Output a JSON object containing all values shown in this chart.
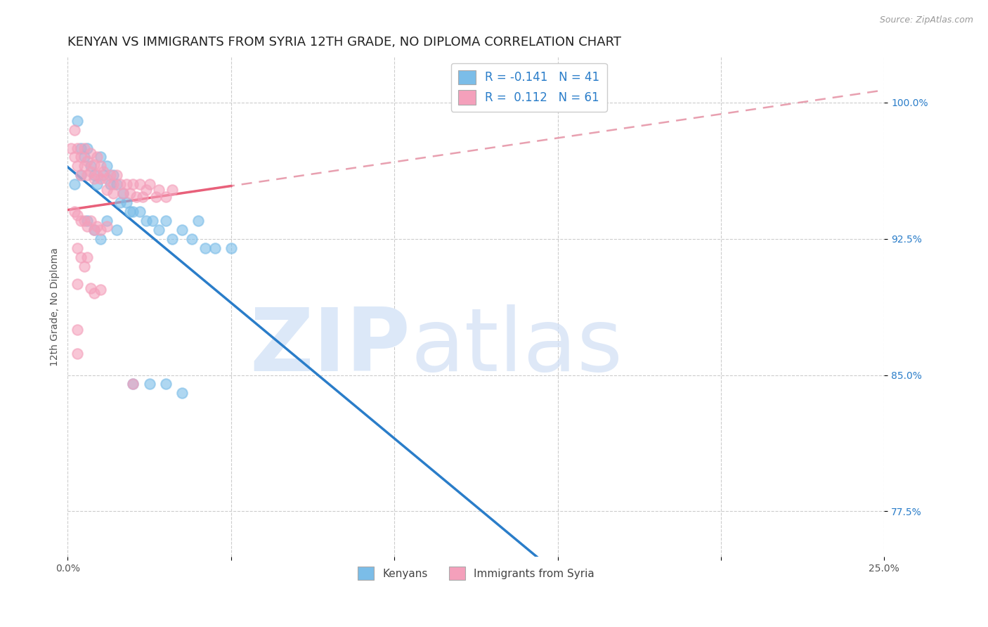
{
  "title": "KENYAN VS IMMIGRANTS FROM SYRIA 12TH GRADE, NO DIPLOMA CORRELATION CHART",
  "source_text": "Source: ZipAtlas.com",
  "ylabel": "12th Grade, No Diploma",
  "xlim": [
    0.0,
    0.25
  ],
  "ylim": [
    0.75,
    1.025
  ],
  "xticks": [
    0.0,
    0.05,
    0.1,
    0.15,
    0.2,
    0.25
  ],
  "xtick_labels": [
    "0.0%",
    "",
    "",
    "",
    "",
    "25.0%"
  ],
  "ytick_labels": [
    "77.5%",
    "85.0%",
    "92.5%",
    "100.0%"
  ],
  "yticks": [
    0.775,
    0.85,
    0.925,
    1.0
  ],
  "legend_top": [
    {
      "label": "R = -0.141   N = 41",
      "color": "#7bbde8"
    },
    {
      "label": "R =  0.112   N = 61",
      "color": "#f4a0bb"
    }
  ],
  "kenyans_x": [
    0.003,
    0.004,
    0.005,
    0.006,
    0.007,
    0.008,
    0.009,
    0.01,
    0.011,
    0.012,
    0.013,
    0.014,
    0.015,
    0.016,
    0.017,
    0.018,
    0.019,
    0.02,
    0.022,
    0.024,
    0.026,
    0.028,
    0.03,
    0.032,
    0.035,
    0.038,
    0.04,
    0.042,
    0.045,
    0.05,
    0.002,
    0.004,
    0.006,
    0.008,
    0.01,
    0.012,
    0.015,
    0.02,
    0.025,
    0.03,
    0.035
  ],
  "kenyans_y": [
    0.99,
    0.975,
    0.97,
    0.975,
    0.965,
    0.96,
    0.955,
    0.97,
    0.96,
    0.965,
    0.955,
    0.96,
    0.955,
    0.945,
    0.95,
    0.945,
    0.94,
    0.94,
    0.94,
    0.935,
    0.935,
    0.93,
    0.935,
    0.925,
    0.93,
    0.925,
    0.935,
    0.92,
    0.92,
    0.92,
    0.955,
    0.96,
    0.935,
    0.93,
    0.925,
    0.935,
    0.93,
    0.845,
    0.845,
    0.845,
    0.84
  ],
  "syria_x": [
    0.001,
    0.002,
    0.002,
    0.003,
    0.003,
    0.004,
    0.004,
    0.005,
    0.005,
    0.006,
    0.006,
    0.007,
    0.007,
    0.008,
    0.008,
    0.009,
    0.009,
    0.01,
    0.01,
    0.011,
    0.012,
    0.012,
    0.013,
    0.014,
    0.014,
    0.015,
    0.016,
    0.017,
    0.018,
    0.019,
    0.02,
    0.021,
    0.022,
    0.023,
    0.024,
    0.025,
    0.027,
    0.028,
    0.03,
    0.032,
    0.002,
    0.003,
    0.004,
    0.005,
    0.006,
    0.007,
    0.008,
    0.009,
    0.01,
    0.012,
    0.003,
    0.004,
    0.005,
    0.006,
    0.003,
    0.007,
    0.008,
    0.01,
    0.003,
    0.003,
    0.02
  ],
  "syria_y": [
    0.975,
    0.985,
    0.97,
    0.975,
    0.965,
    0.97,
    0.96,
    0.975,
    0.965,
    0.968,
    0.96,
    0.972,
    0.962,
    0.966,
    0.958,
    0.97,
    0.96,
    0.965,
    0.958,
    0.962,
    0.958,
    0.952,
    0.96,
    0.955,
    0.95,
    0.96,
    0.955,
    0.95,
    0.955,
    0.95,
    0.955,
    0.948,
    0.955,
    0.948,
    0.952,
    0.955,
    0.948,
    0.952,
    0.948,
    0.952,
    0.94,
    0.938,
    0.935,
    0.935,
    0.932,
    0.935,
    0.93,
    0.932,
    0.93,
    0.932,
    0.92,
    0.915,
    0.91,
    0.915,
    0.9,
    0.898,
    0.895,
    0.897,
    0.875,
    0.862,
    0.845
  ],
  "kenyan_color": "#7bbde8",
  "syria_color": "#f4a0bb",
  "kenyan_line_color": "#2a7dc9",
  "syria_line_solid_color": "#e8607a",
  "syria_line_dash_color": "#e8a0b0",
  "watermark_zip": "ZIP",
  "watermark_atlas": "atlas",
  "watermark_color": "#dce8f8",
  "background_color": "#ffffff",
  "grid_color": "#cccccc",
  "title_fontsize": 13,
  "axis_label_fontsize": 10,
  "tick_fontsize": 10,
  "ytick_color": "#2a7dc9",
  "source_color": "#999999"
}
